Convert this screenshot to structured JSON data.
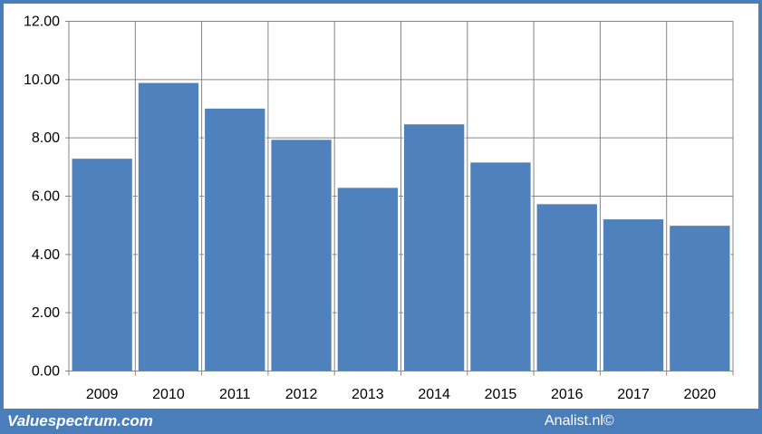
{
  "chart_data": {
    "type": "bar",
    "categories": [
      "2009",
      "2010",
      "2011",
      "2012",
      "2013",
      "2014",
      "2015",
      "2016",
      "2017",
      "2020"
    ],
    "values": [
      7.3,
      9.9,
      9.02,
      7.95,
      6.3,
      8.48,
      7.17,
      5.74,
      5.22,
      5.0
    ],
    "y_ticks": [
      "0.00",
      "2.00",
      "4.00",
      "6.00",
      "8.00",
      "10.00",
      "12.00"
    ],
    "ylim": [
      0,
      12
    ],
    "grid": true,
    "bar_color": "#4f81bd"
  },
  "footer": {
    "left_text": "Valuespectrum.com",
    "right_text": "Analist.nl©"
  },
  "colors": {
    "frame": "#4a7ebb",
    "grid": "#868686"
  }
}
